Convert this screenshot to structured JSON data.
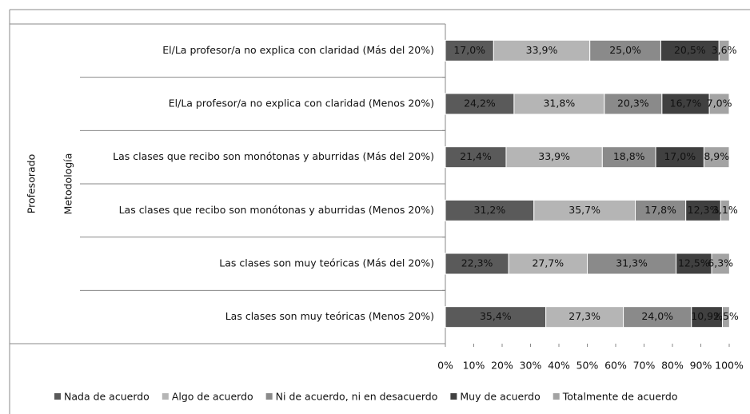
{
  "chart_data": {
    "type": "stacked_bar_horizontal",
    "group_labels": [
      "Profesorado",
      "Metodología"
    ],
    "categories": [
      "El/La  profesor/a no explica con claridad (Más del 20%)",
      "El/La  profesor/a no explica con claridad (Menos 20%)",
      "Las clases que recibo son monótonas y aburridas (Más del 20%)",
      "Las clases que recibo son monótonas y aburridas (Menos 20%)",
      "Las clases son muy teóricas (Más del 20%)",
      "Las clases son muy teóricas (Menos 20%)"
    ],
    "series": [
      {
        "name": "Nada de acuerdo",
        "color": "#5a5a5a",
        "values": [
          17.0,
          24.2,
          21.4,
          31.2,
          22.3,
          35.4
        ],
        "value_labels": [
          "17,0%",
          "24,2%",
          "21,4%",
          "31,2%",
          "22,3%",
          "35,4%"
        ]
      },
      {
        "name": "Algo de acuerdo",
        "color": "#b5b5b5",
        "values": [
          33.9,
          31.8,
          33.9,
          35.7,
          27.7,
          27.3
        ],
        "value_labels": [
          "33,9%",
          "31,8%",
          "33,9%",
          "35,7%",
          "27,7%",
          "27,3%"
        ]
      },
      {
        "name": "Ni de acuerdo, ni en desacuerdo",
        "color": "#8a8a8a",
        "values": [
          25.0,
          20.3,
          18.8,
          17.8,
          31.3,
          24.0
        ],
        "value_labels": [
          "25,0%",
          "20,3%",
          "18,8%",
          "17,8%",
          "31,3%",
          "24,0%"
        ]
      },
      {
        "name": "Muy de acuerdo",
        "color": "#404040",
        "values": [
          20.5,
          16.7,
          17.0,
          12.3,
          12.5,
          10.9
        ],
        "value_labels": [
          "20,5%",
          "16,7%",
          "17,0%",
          "12,3%",
          "12,5%",
          "10,9%"
        ]
      },
      {
        "name": "Totalmente de acuerdo",
        "color": "#a3a3a3",
        "values": [
          3.6,
          7.0,
          8.9,
          3.1,
          6.3,
          2.5
        ],
        "value_labels": [
          "3,6%",
          "7,0%",
          "8,9%",
          "3,1%",
          "6,3%",
          "2,5%"
        ]
      }
    ],
    "xlim": [
      0,
      100
    ],
    "xticks": [
      {
        "value": 0,
        "label": "0%"
      },
      {
        "value": 10,
        "label": "10%"
      },
      {
        "value": 20,
        "label": "20%"
      },
      {
        "value": 30,
        "label": "30%"
      },
      {
        "value": 40,
        "label": "40%"
      },
      {
        "value": 50,
        "label": "50%"
      },
      {
        "value": 60,
        "label": "60%"
      },
      {
        "value": 70,
        "label": "70%"
      },
      {
        "value": 80,
        "label": "80%"
      },
      {
        "value": 90,
        "label": "90%"
      },
      {
        "value": 100,
        "label": "100%"
      }
    ],
    "legend": "bottom"
  }
}
